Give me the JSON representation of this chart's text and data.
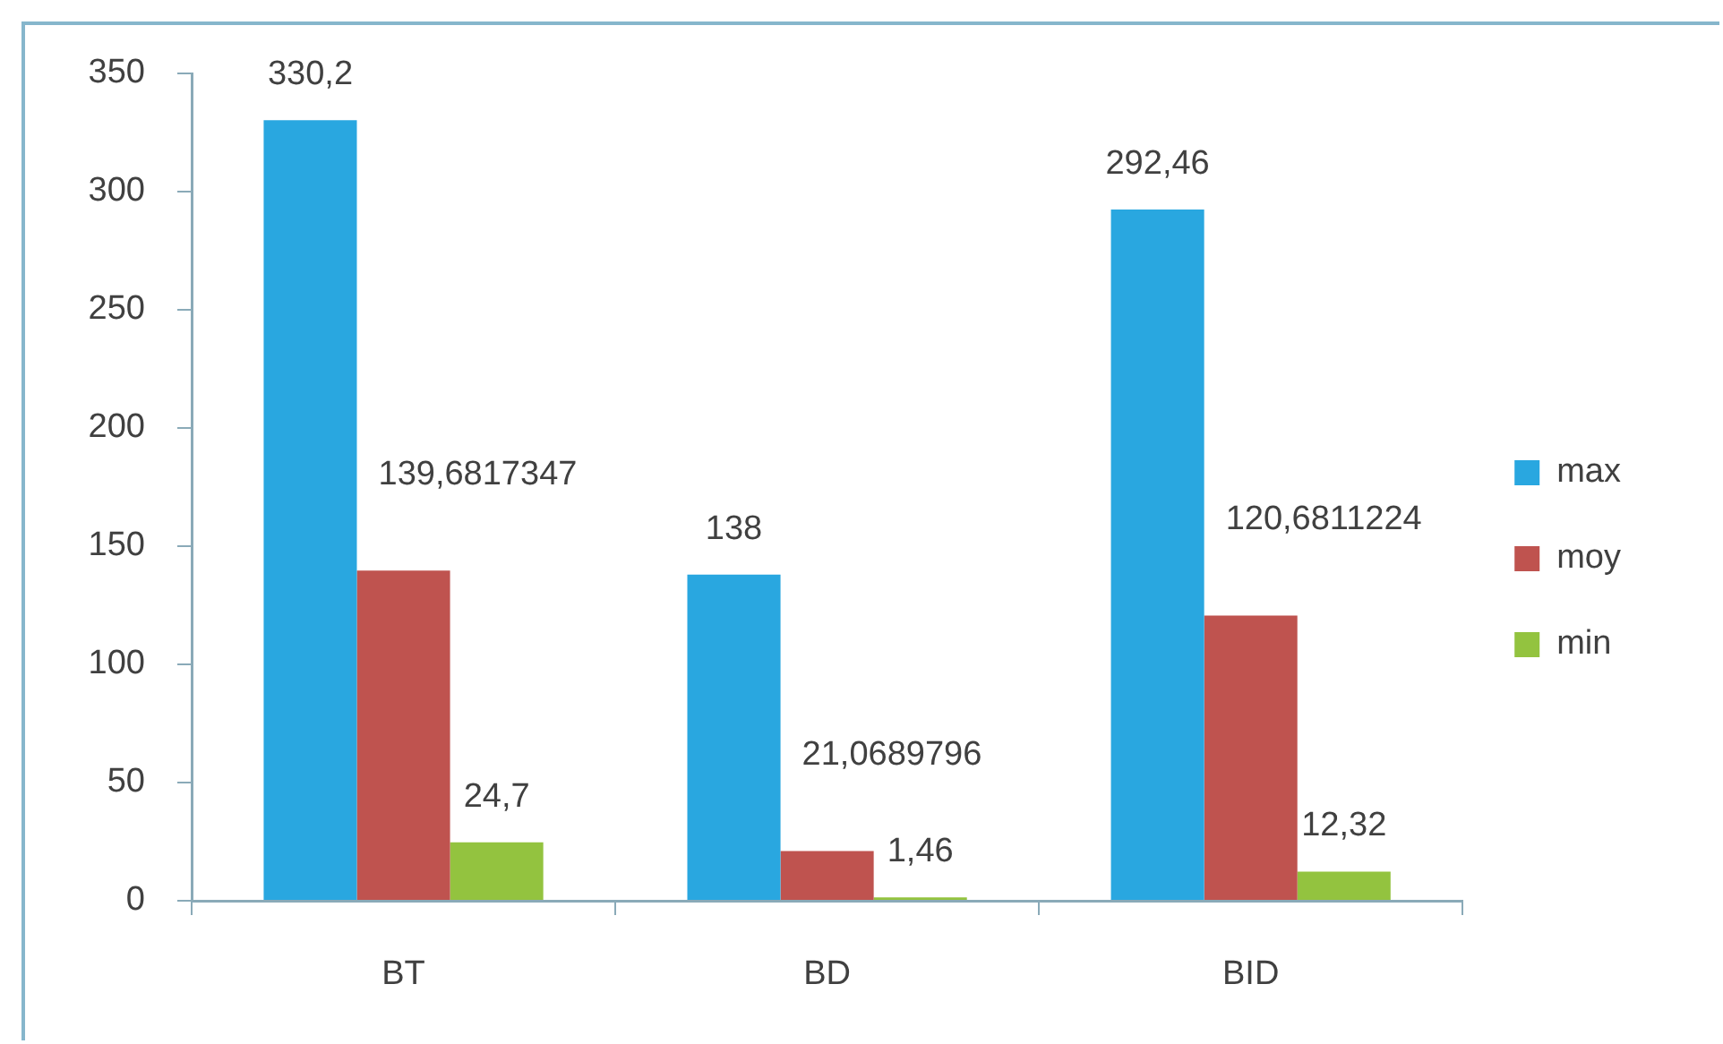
{
  "chart_data": {
    "type": "bar",
    "categories": [
      "BT",
      "BD",
      "BID"
    ],
    "series": [
      {
        "name": "max",
        "color": "#29a7e0",
        "values": [
          330.2,
          138,
          292.46
        ],
        "value_labels": [
          "330,2",
          "138",
          "292,46"
        ]
      },
      {
        "name": "moy",
        "color": "#bf534f",
        "values": [
          139.6817347,
          21.0689796,
          120.6811224
        ],
        "value_labels": [
          "139,6817347",
          "21,0689796",
          "120,6811224"
        ]
      },
      {
        "name": "min",
        "color": "#93c33f",
        "values": [
          24.7,
          1.46,
          12.32
        ],
        "value_labels": [
          "24,7",
          "1,46",
          "12,32"
        ]
      }
    ],
    "ylim": [
      0,
      350
    ],
    "yticks": [
      0,
      50,
      100,
      150,
      200,
      250,
      300,
      350
    ],
    "grid": false,
    "legend": "right"
  }
}
